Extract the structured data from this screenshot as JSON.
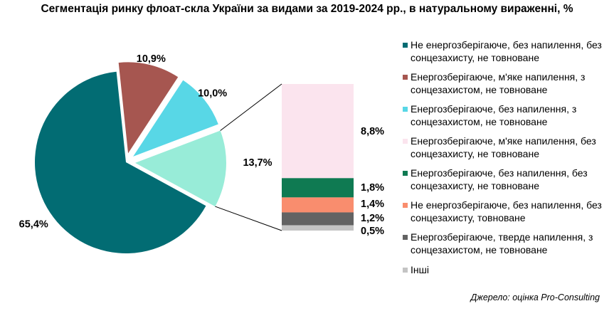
{
  "title": "Сегментація ринку флоат-скла України за видами за 2019-2024 рр., в натуральному вираженні, %",
  "source": "Джерело: оцінка Pro-Consulting",
  "chart_data": {
    "type": "bar-of-pie",
    "pie": {
      "values": [
        65.4,
        10.9,
        10.0,
        13.7
      ],
      "labels": [
        "65,4%",
        "10,9%",
        "10,0%",
        "13,7%"
      ],
      "colors": [
        "#026c73",
        "#a65650",
        "#58d7e6",
        "#98ecd8"
      ],
      "exploded": [
        false,
        true,
        true,
        true
      ]
    },
    "bar": {
      "values": [
        8.8,
        1.8,
        1.4,
        1.2,
        0.5
      ],
      "labels": [
        "8,8%",
        "1,8%",
        "1,4%",
        "1,2%",
        "0,5%"
      ],
      "colors": [
        "#fbe4ee",
        "#0f7a52",
        "#f98d6e",
        "#636363",
        "#c4c4c4"
      ]
    },
    "legend": [
      {
        "label": "Не енергозберігаюче, без напилення, без сонцезахисту, не товноване",
        "color": "#026c73"
      },
      {
        "label": "Енергозберігаюче, м'яке напилення, з сонцезахистом, не товноване",
        "color": "#a65650"
      },
      {
        "label": "Енергозберігаюче, без напилення, з сонцезахистом, не товноване",
        "color": "#58d7e6"
      },
      {
        "label": "Енергозберігаюче, м'яке напилення, без сонцезахисту, не товноване",
        "color": "#fbe4ee"
      },
      {
        "label": "Енергозберігаюче, без напилення, без сонцезахисту, не товноване",
        "color": "#0f7a52"
      },
      {
        "label": "Не енергозберігаюче, без напилення, без сонцезахисту, товноване",
        "color": "#f98d6e"
      },
      {
        "label": "Енергозберігаюче, тверде напилення, з сонцезахистом, не товноване",
        "color": "#636363"
      },
      {
        "label": "Інші",
        "color": "#c4c4c4"
      }
    ],
    "legend_position": "right"
  }
}
